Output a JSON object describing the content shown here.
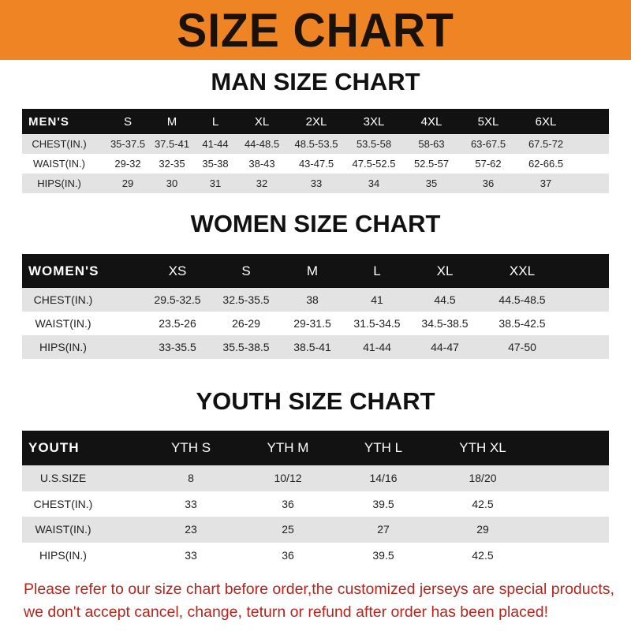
{
  "banner": {
    "title": "SIZE CHART",
    "color": "#ee8424"
  },
  "tables": [
    {
      "title": "MAN SIZE CHART",
      "header": [
        "MEN'S",
        "S",
        "M",
        "L",
        "XL",
        "2XL",
        "3XL",
        "4XL",
        "5XL",
        "6XL"
      ],
      "rows": [
        [
          "CHEST(IN.)",
          "35-37.5",
          "37.5-41",
          "41-44",
          "44-48.5",
          "48.5-53.5",
          "53.5-58",
          "58-63",
          "63-67.5",
          "67.5-72"
        ],
        [
          "WAIST(IN.)",
          "29-32",
          "32-35",
          "35-38",
          "38-43",
          "43-47.5",
          "47.5-52.5",
          "52.5-57",
          "57-62",
          "62-66.5"
        ],
        [
          "HIPS(IN.)",
          "29",
          "30",
          "31",
          "32",
          "33",
          "34",
          "35",
          "36",
          "37"
        ]
      ]
    },
    {
      "title": "WOMEN SIZE CHART",
      "header": [
        "WOMEN'S",
        "XS",
        "S",
        "M",
        "L",
        "XL",
        "XXL"
      ],
      "rows": [
        [
          "CHEST(IN.)",
          "29.5-32.5",
          "32.5-35.5",
          "38",
          "41",
          "44.5",
          "44.5-48.5"
        ],
        [
          "WAIST(IN.)",
          "23.5-26",
          "26-29",
          "29-31.5",
          "31.5-34.5",
          "34.5-38.5",
          "38.5-42.5"
        ],
        [
          "HIPS(IN.)",
          "33-35.5",
          "35.5-38.5",
          "38.5-41",
          "41-44",
          "44-47",
          "47-50"
        ]
      ]
    },
    {
      "title": "YOUTH SIZE CHART",
      "header": [
        "YOUTH",
        "YTH S",
        "YTH M",
        "YTH L",
        "YTH XL"
      ],
      "rows": [
        [
          "U.S.SIZE",
          "8",
          "10/12",
          "14/16",
          "18/20"
        ],
        [
          "CHEST(IN.)",
          "33",
          "36",
          "39.5",
          "42.5"
        ],
        [
          "WAIST(IN.)",
          "23",
          "25",
          "27",
          "29"
        ],
        [
          "HIPS(IN.)",
          "33",
          "36",
          "39.5",
          "42.5"
        ]
      ]
    }
  ],
  "note": {
    "line1": "Please refer to our size chart before order,the customized jerseys are special products,",
    "line2": "we don't accept cancel, change, teturn or refund after order has been placed!"
  }
}
